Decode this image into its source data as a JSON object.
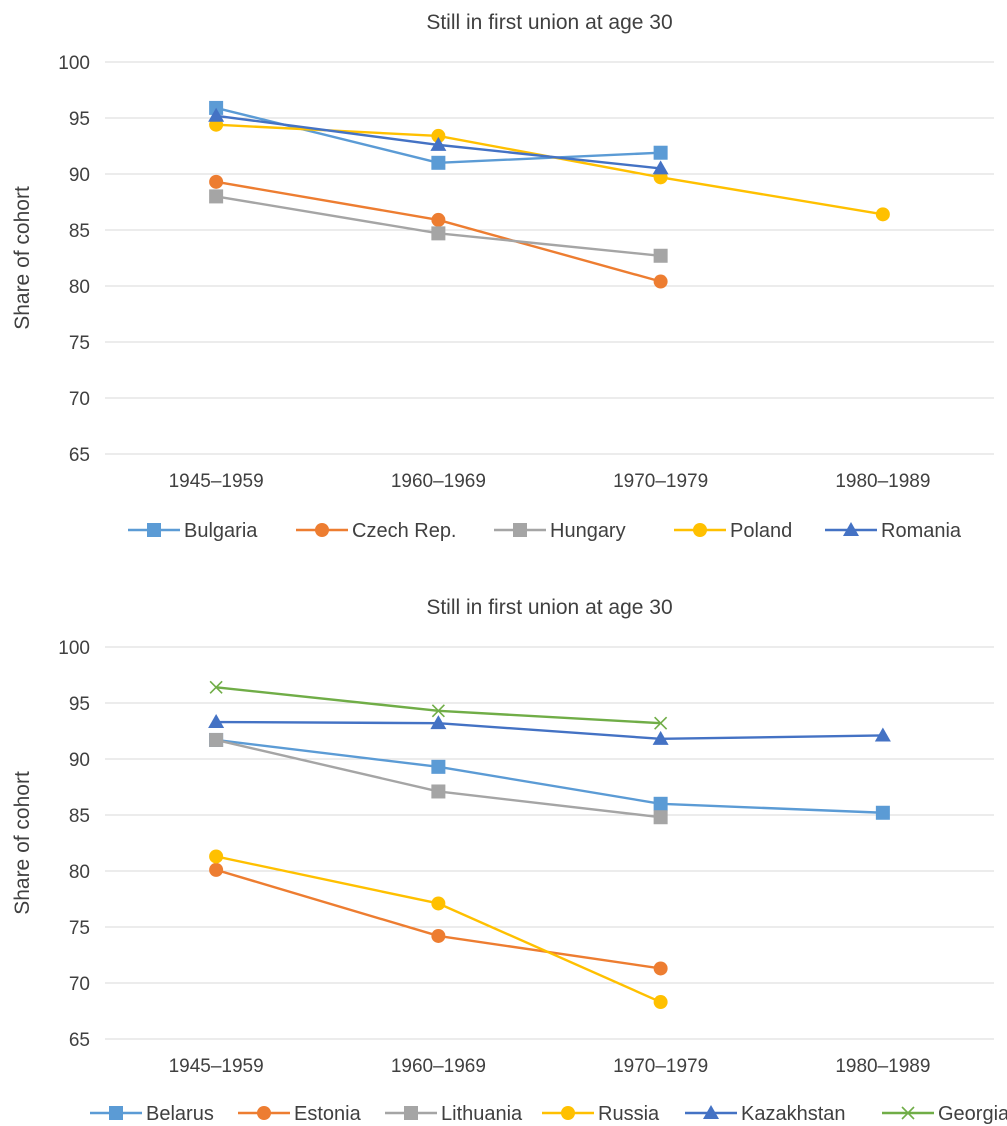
{
  "chart_data": [
    {
      "type": "line",
      "title": "Still in first union at age 30",
      "xlabel": "",
      "ylabel": "Share of cohort",
      "ylim": [
        65,
        100
      ],
      "yticks": [
        65,
        70,
        75,
        80,
        85,
        90,
        95,
        100
      ],
      "grid": true,
      "legend_position": "bottom",
      "categories": [
        "1945–1959",
        "1960–1969",
        "1970–1979",
        "1980–1989"
      ],
      "series": [
        {
          "name": "Bulgaria",
          "values": [
            95.9,
            91.0,
            91.9,
            null
          ],
          "color": "#5B9BD5",
          "marker": "square"
        },
        {
          "name": "Czech Rep.",
          "values": [
            89.3,
            85.9,
            80.4,
            null
          ],
          "color": "#ED7D31",
          "marker": "circle"
        },
        {
          "name": "Hungary",
          "values": [
            88.0,
            84.7,
            82.7,
            null
          ],
          "color": "#A5A5A5",
          "marker": "square"
        },
        {
          "name": "Poland",
          "values": [
            94.4,
            93.4,
            89.7,
            86.4
          ],
          "color": "#FFC000",
          "marker": "circle"
        },
        {
          "name": "Romania",
          "values": [
            95.2,
            92.6,
            90.5,
            null
          ],
          "color": "#4472C4",
          "marker": "triangle"
        }
      ]
    },
    {
      "type": "line",
      "title": "Still in first union at age 30",
      "xlabel": "",
      "ylabel": "Share of cohort",
      "ylim": [
        65,
        100
      ],
      "yticks": [
        65,
        70,
        75,
        80,
        85,
        90,
        95,
        100
      ],
      "grid": true,
      "legend_position": "bottom",
      "categories": [
        "1945–1959",
        "1960–1969",
        "1970–1979",
        "1980–1989"
      ],
      "series": [
        {
          "name": "Belarus",
          "values": [
            91.7,
            89.3,
            86.0,
            85.2
          ],
          "color": "#5B9BD5",
          "marker": "square"
        },
        {
          "name": "Estonia",
          "values": [
            80.1,
            74.2,
            71.3,
            null
          ],
          "color": "#ED7D31",
          "marker": "circle"
        },
        {
          "name": "Lithuania",
          "values": [
            91.7,
            87.1,
            84.8,
            null
          ],
          "color": "#A5A5A5",
          "marker": "square"
        },
        {
          "name": "Russia",
          "values": [
            81.3,
            77.1,
            68.3,
            null
          ],
          "color": "#FFC000",
          "marker": "circle"
        },
        {
          "name": "Kazakhstan",
          "values": [
            93.3,
            93.2,
            91.8,
            92.1
          ],
          "color": "#4472C4",
          "marker": "triangle"
        },
        {
          "name": "Georgia",
          "values": [
            96.4,
            94.3,
            93.2,
            null
          ],
          "color": "#70AD47",
          "marker": "x"
        }
      ]
    }
  ]
}
